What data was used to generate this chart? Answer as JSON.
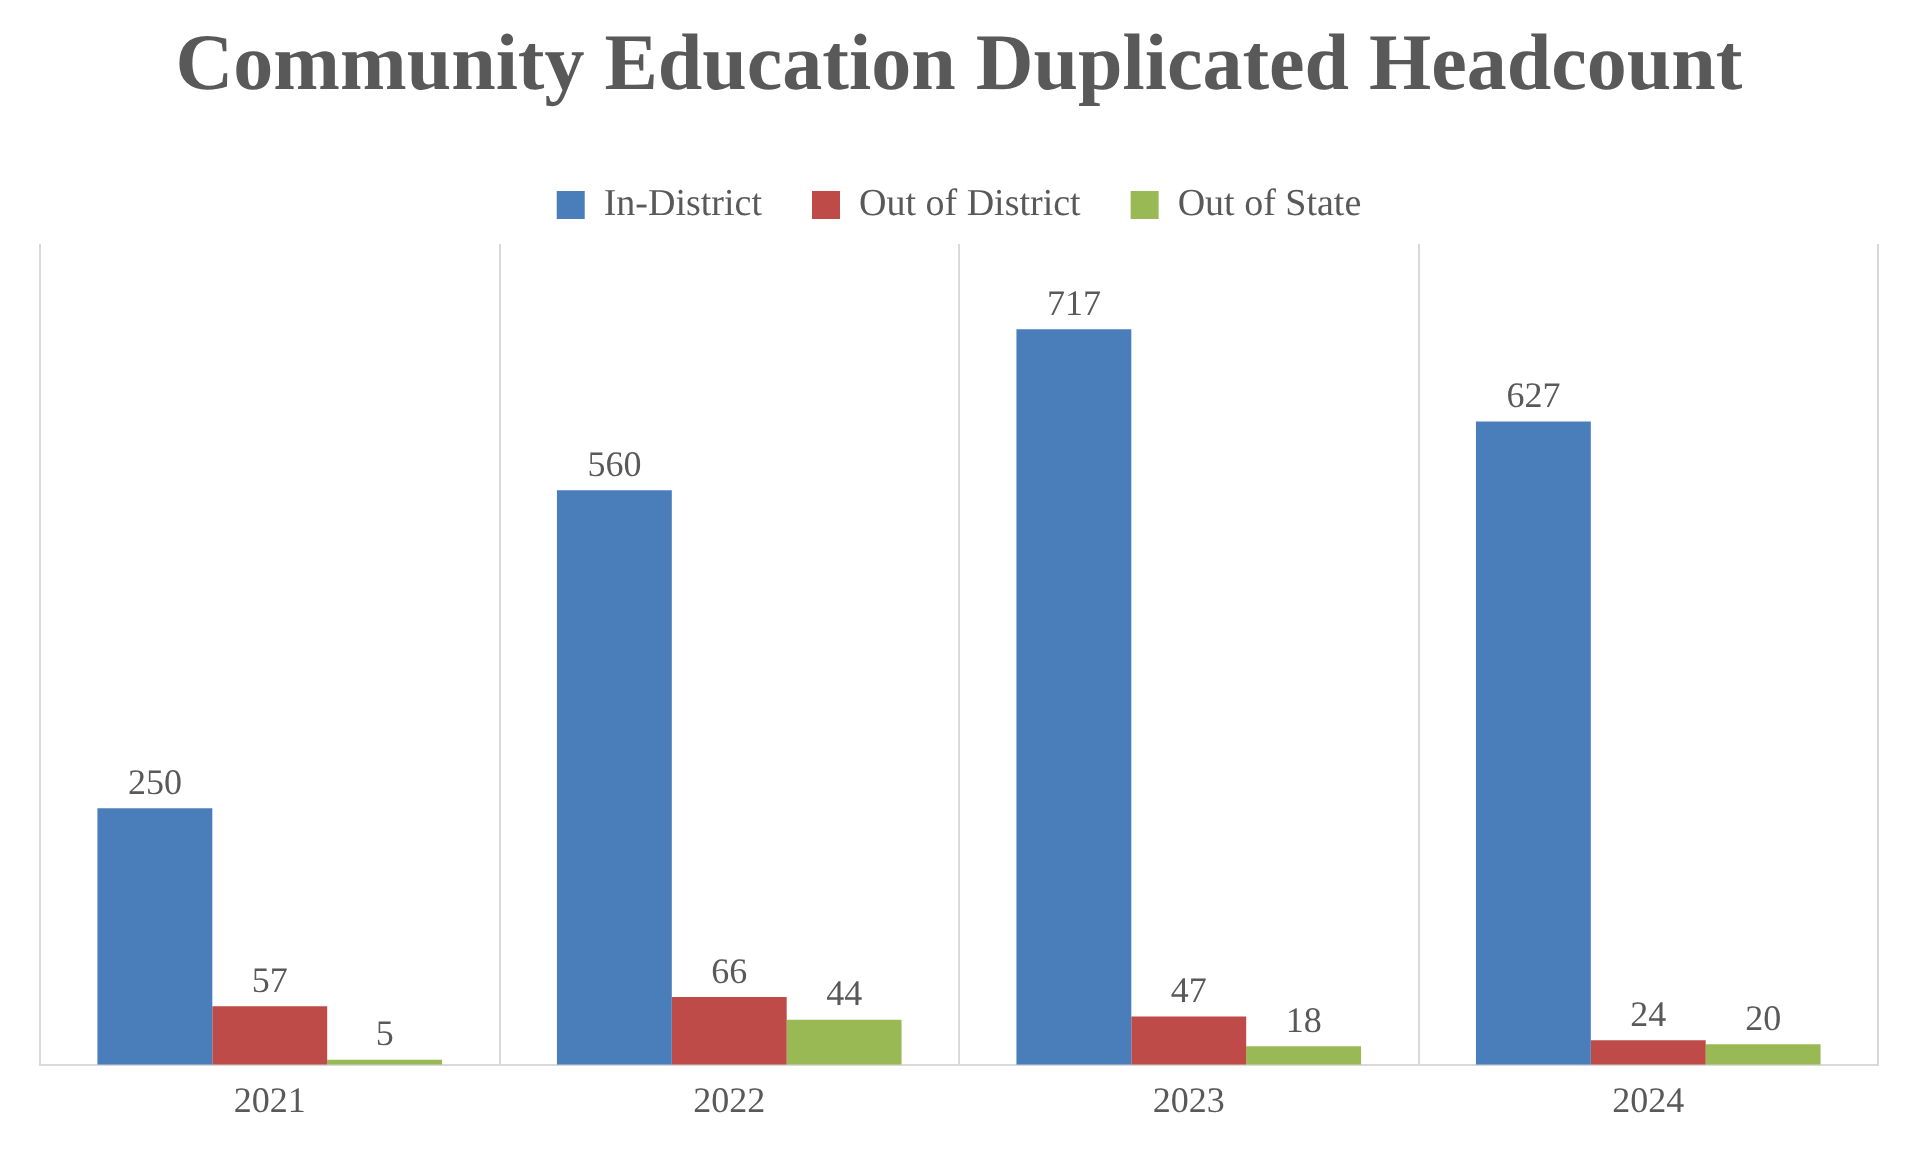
{
  "chart_data": {
    "type": "bar",
    "title": "Community Education Duplicated Headcount",
    "categories": [
      "2021",
      "2022",
      "2023",
      "2024"
    ],
    "series": [
      {
        "name": "In-District",
        "color": "#4a7ebb",
        "values": [
          250,
          560,
          717,
          627
        ]
      },
      {
        "name": "Out of District",
        "color": "#be4b48",
        "values": [
          57,
          66,
          47,
          24
        ]
      },
      {
        "name": "Out of State",
        "color": "#98b954",
        "values": [
          5,
          44,
          18,
          20
        ]
      }
    ],
    "data_labels": true,
    "grid": "x",
    "legend": "top"
  }
}
